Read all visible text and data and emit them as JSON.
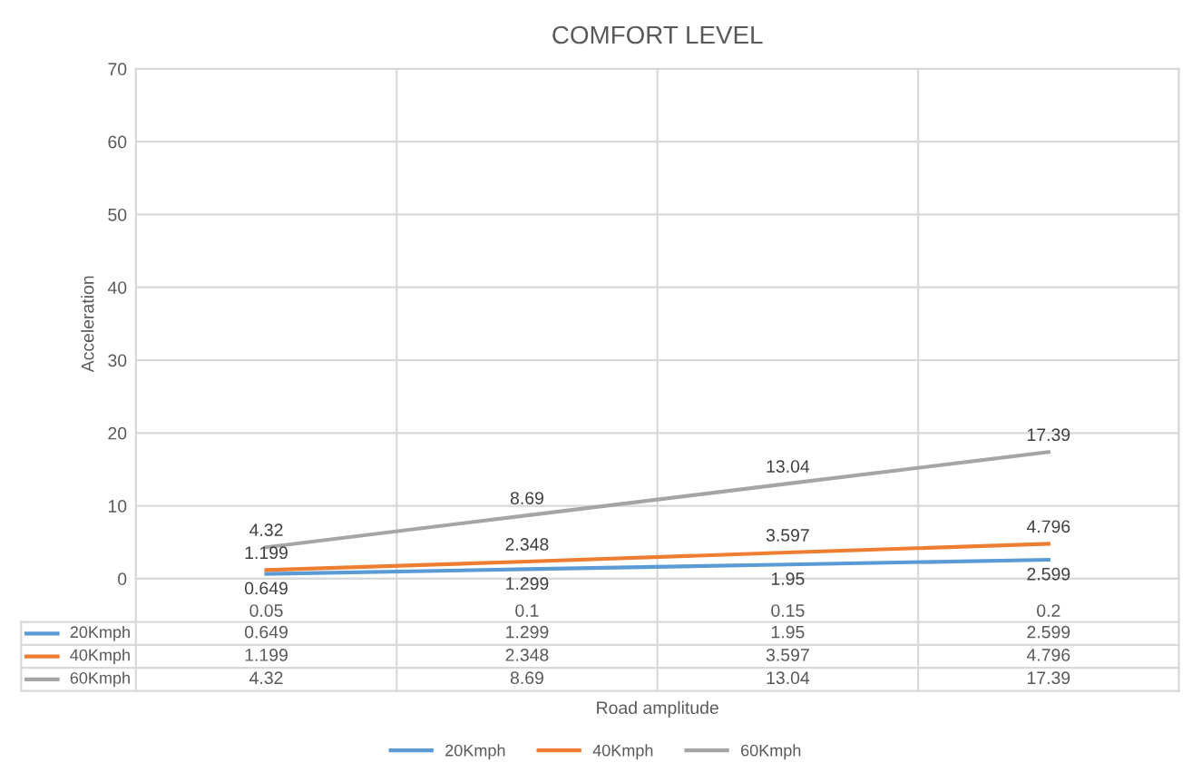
{
  "chart_data": {
    "type": "line",
    "title": "COMFORT LEVEL",
    "xlabel": "Road amplitude",
    "ylabel": "Acceleration",
    "categories": [
      "0.05",
      "0.1",
      "0.15",
      "0.2"
    ],
    "series": [
      {
        "name": "20Kmph",
        "color": "#5b9bd5",
        "values": [
          0.649,
          1.299,
          1.95,
          2.599
        ]
      },
      {
        "name": "40Kmph",
        "color": "#ed7d31",
        "values": [
          1.199,
          2.348,
          3.597,
          4.796
        ]
      },
      {
        "name": "60Kmph",
        "color": "#a5a5a5",
        "values": [
          4.32,
          8.69,
          13.04,
          17.39
        ]
      }
    ],
    "annotations": [
      {
        "text": "0.649",
        "x": "0.05",
        "y": 0.649
      },
      {
        "text": "1.299",
        "x": "0.1",
        "y": 1.299
      },
      {
        "text": "1.95",
        "x": "0.15",
        "y": 1.95
      },
      {
        "text": "2.599",
        "x": "0.2",
        "y": 2.599
      },
      {
        "text": "1.199",
        "x": "0.05",
        "y": 1.199
      },
      {
        "text": "2.348",
        "x": "0.1",
        "y": 2.348
      },
      {
        "text": "3.597",
        "x": "0.15",
        "y": 3.597
      },
      {
        "text": "4.796",
        "x": "0.2",
        "y": 4.796
      },
      {
        "text": "4.32",
        "x": "0.05",
        "y": 4.32
      },
      {
        "text": "8.69",
        "x": "0.1",
        "y": 8.69
      },
      {
        "text": "13.04",
        "x": "0.15",
        "y": 13.04
      },
      {
        "text": "17.39",
        "x": "0.2",
        "y": 17.39
      }
    ],
    "ylim": [
      0,
      70
    ],
    "yticks": [
      0,
      10,
      20,
      30,
      40,
      50,
      60,
      70
    ],
    "grid": true,
    "legend": "bottom",
    "data_labels": true,
    "marker": "none",
    "line_style": "solid"
  }
}
